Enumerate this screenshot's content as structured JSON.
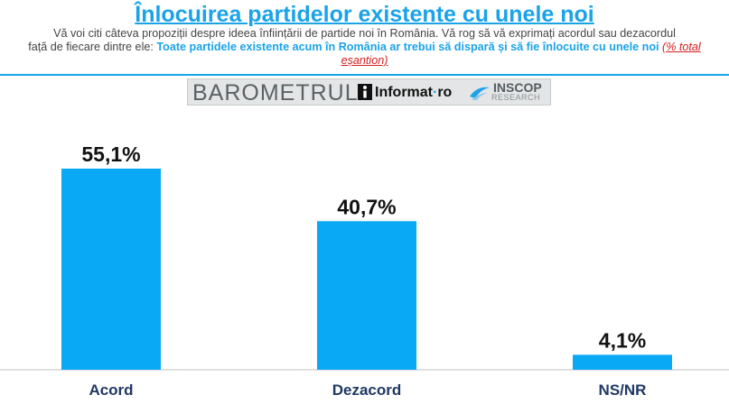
{
  "header": {
    "title": "Înlocuirea partidelor existente cu unele noi",
    "intro_line1": "Vă voi citi câteva propoziții despre ideea înființării de partide noi în România. Vă rog să vă exprimați acordul sau dezacordul",
    "intro_line2_prefix": "față de fiecare dintre ele: ",
    "question": "Toate partidele existente acum în România ar trebui să dispară și să fie înlocuite cu unele noi",
    "note": "(% total eșantion)"
  },
  "banner": {
    "barometer": "BAROMETRUL",
    "partner1": "Informat",
    "partner1_dot": "·",
    "partner1_tld": "ro",
    "partner2": "INSCOP",
    "partner2_sub": "RESEARCH",
    "icon1": "informat-i-icon",
    "icon2": "inscop-swoosh-icon"
  },
  "chart_data": {
    "type": "bar",
    "categories": [
      "Acord",
      "Dezacord",
      "NS/NR"
    ],
    "values": [
      55.1,
      40.7,
      4.1
    ],
    "value_labels": [
      "55,1%",
      "40,7%",
      "4,1%"
    ],
    "ylim": [
      0,
      60
    ],
    "bar_color": "#0aa9f5",
    "grid": false,
    "legend": "none"
  }
}
